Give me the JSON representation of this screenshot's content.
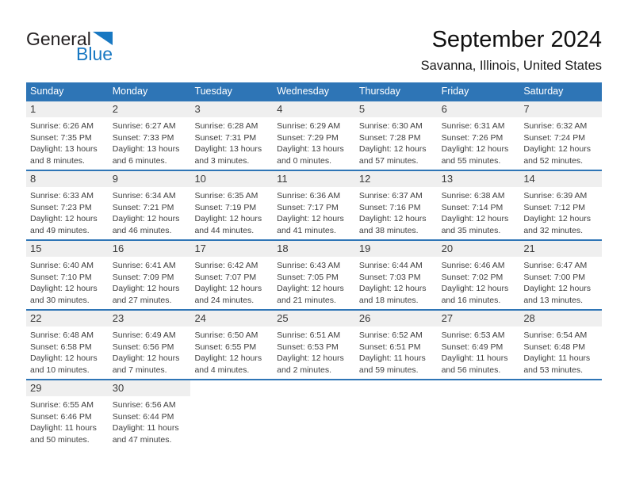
{
  "logo": {
    "text_dark": "General",
    "text_blue": "Blue"
  },
  "header": {
    "title": "September 2024",
    "subtitle": "Savanna, Illinois, United States"
  },
  "weekday_headers": [
    "Sunday",
    "Monday",
    "Tuesday",
    "Wednesday",
    "Thursday",
    "Friday",
    "Saturday"
  ],
  "colors": {
    "header_bg": "#2e75b6",
    "band_bg": "#efefef",
    "logo_blue": "#1878c2",
    "text_color": "#3f3f3f"
  },
  "weeks": [
    [
      {
        "day": "1",
        "lines": [
          "Sunrise: 6:26 AM",
          "Sunset: 7:35 PM",
          "Daylight: 13 hours",
          "and 8 minutes."
        ]
      },
      {
        "day": "2",
        "lines": [
          "Sunrise: 6:27 AM",
          "Sunset: 7:33 PM",
          "Daylight: 13 hours",
          "and 6 minutes."
        ]
      },
      {
        "day": "3",
        "lines": [
          "Sunrise: 6:28 AM",
          "Sunset: 7:31 PM",
          "Daylight: 13 hours",
          "and 3 minutes."
        ]
      },
      {
        "day": "4",
        "lines": [
          "Sunrise: 6:29 AM",
          "Sunset: 7:29 PM",
          "Daylight: 13 hours",
          "and 0 minutes."
        ]
      },
      {
        "day": "5",
        "lines": [
          "Sunrise: 6:30 AM",
          "Sunset: 7:28 PM",
          "Daylight: 12 hours",
          "and 57 minutes."
        ]
      },
      {
        "day": "6",
        "lines": [
          "Sunrise: 6:31 AM",
          "Sunset: 7:26 PM",
          "Daylight: 12 hours",
          "and 55 minutes."
        ]
      },
      {
        "day": "7",
        "lines": [
          "Sunrise: 6:32 AM",
          "Sunset: 7:24 PM",
          "Daylight: 12 hours",
          "and 52 minutes."
        ]
      }
    ],
    [
      {
        "day": "8",
        "lines": [
          "Sunrise: 6:33 AM",
          "Sunset: 7:23 PM",
          "Daylight: 12 hours",
          "and 49 minutes."
        ]
      },
      {
        "day": "9",
        "lines": [
          "Sunrise: 6:34 AM",
          "Sunset: 7:21 PM",
          "Daylight: 12 hours",
          "and 46 minutes."
        ]
      },
      {
        "day": "10",
        "lines": [
          "Sunrise: 6:35 AM",
          "Sunset: 7:19 PM",
          "Daylight: 12 hours",
          "and 44 minutes."
        ]
      },
      {
        "day": "11",
        "lines": [
          "Sunrise: 6:36 AM",
          "Sunset: 7:17 PM",
          "Daylight: 12 hours",
          "and 41 minutes."
        ]
      },
      {
        "day": "12",
        "lines": [
          "Sunrise: 6:37 AM",
          "Sunset: 7:16 PM",
          "Daylight: 12 hours",
          "and 38 minutes."
        ]
      },
      {
        "day": "13",
        "lines": [
          "Sunrise: 6:38 AM",
          "Sunset: 7:14 PM",
          "Daylight: 12 hours",
          "and 35 minutes."
        ]
      },
      {
        "day": "14",
        "lines": [
          "Sunrise: 6:39 AM",
          "Sunset: 7:12 PM",
          "Daylight: 12 hours",
          "and 32 minutes."
        ]
      }
    ],
    [
      {
        "day": "15",
        "lines": [
          "Sunrise: 6:40 AM",
          "Sunset: 7:10 PM",
          "Daylight: 12 hours",
          "and 30 minutes."
        ]
      },
      {
        "day": "16",
        "lines": [
          "Sunrise: 6:41 AM",
          "Sunset: 7:09 PM",
          "Daylight: 12 hours",
          "and 27 minutes."
        ]
      },
      {
        "day": "17",
        "lines": [
          "Sunrise: 6:42 AM",
          "Sunset: 7:07 PM",
          "Daylight: 12 hours",
          "and 24 minutes."
        ]
      },
      {
        "day": "18",
        "lines": [
          "Sunrise: 6:43 AM",
          "Sunset: 7:05 PM",
          "Daylight: 12 hours",
          "and 21 minutes."
        ]
      },
      {
        "day": "19",
        "lines": [
          "Sunrise: 6:44 AM",
          "Sunset: 7:03 PM",
          "Daylight: 12 hours",
          "and 18 minutes."
        ]
      },
      {
        "day": "20",
        "lines": [
          "Sunrise: 6:46 AM",
          "Sunset: 7:02 PM",
          "Daylight: 12 hours",
          "and 16 minutes."
        ]
      },
      {
        "day": "21",
        "lines": [
          "Sunrise: 6:47 AM",
          "Sunset: 7:00 PM",
          "Daylight: 12 hours",
          "and 13 minutes."
        ]
      }
    ],
    [
      {
        "day": "22",
        "lines": [
          "Sunrise: 6:48 AM",
          "Sunset: 6:58 PM",
          "Daylight: 12 hours",
          "and 10 minutes."
        ]
      },
      {
        "day": "23",
        "lines": [
          "Sunrise: 6:49 AM",
          "Sunset: 6:56 PM",
          "Daylight: 12 hours",
          "and 7 minutes."
        ]
      },
      {
        "day": "24",
        "lines": [
          "Sunrise: 6:50 AM",
          "Sunset: 6:55 PM",
          "Daylight: 12 hours",
          "and 4 minutes."
        ]
      },
      {
        "day": "25",
        "lines": [
          "Sunrise: 6:51 AM",
          "Sunset: 6:53 PM",
          "Daylight: 12 hours",
          "and 2 minutes."
        ]
      },
      {
        "day": "26",
        "lines": [
          "Sunrise: 6:52 AM",
          "Sunset: 6:51 PM",
          "Daylight: 11 hours",
          "and 59 minutes."
        ]
      },
      {
        "day": "27",
        "lines": [
          "Sunrise: 6:53 AM",
          "Sunset: 6:49 PM",
          "Daylight: 11 hours",
          "and 56 minutes."
        ]
      },
      {
        "day": "28",
        "lines": [
          "Sunrise: 6:54 AM",
          "Sunset: 6:48 PM",
          "Daylight: 11 hours",
          "and 53 minutes."
        ]
      }
    ],
    [
      {
        "day": "29",
        "lines": [
          "Sunrise: 6:55 AM",
          "Sunset: 6:46 PM",
          "Daylight: 11 hours",
          "and 50 minutes."
        ]
      },
      {
        "day": "30",
        "lines": [
          "Sunrise: 6:56 AM",
          "Sunset: 6:44 PM",
          "Daylight: 11 hours",
          "and 47 minutes."
        ]
      },
      null,
      null,
      null,
      null,
      null
    ]
  ]
}
